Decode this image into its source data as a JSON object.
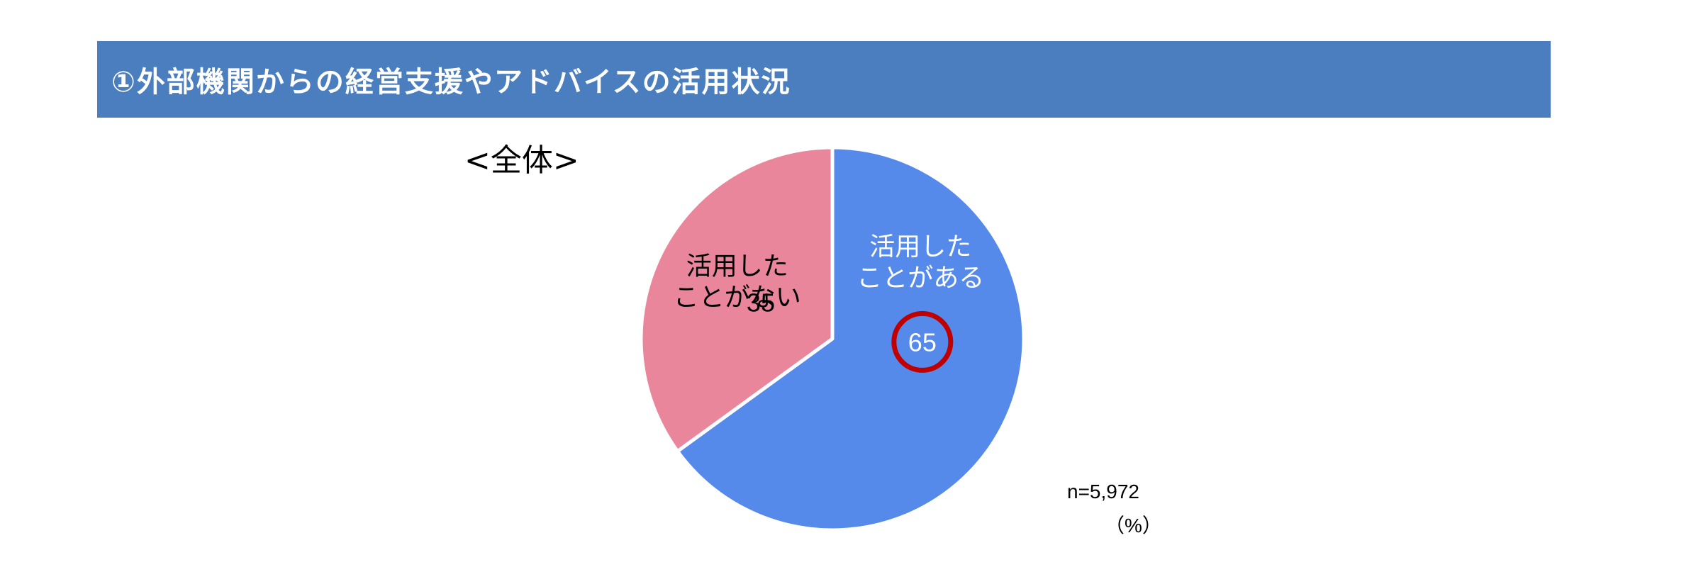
{
  "header": {
    "title": "①外部機関からの経営支援やアドバイスの活用状況",
    "bar_color": "#4a7ebf"
  },
  "scope_label": "<全体>",
  "chart_data": {
    "type": "pie",
    "title": "",
    "start_angle_deg": 0,
    "direction": "clockwise",
    "slices": [
      {
        "label_lines": [
          "活用した",
          "ことがある"
        ],
        "value": 65,
        "value_text": "65",
        "color": "#5589ea",
        "text_color": "#ffffff",
        "highlighted": true,
        "highlight_color": "#c00000"
      },
      {
        "label_lines": [
          "活用した",
          "ことがない"
        ],
        "value": 35,
        "value_text": "35",
        "color": "#e9869b",
        "text_color": "#000000",
        "highlighted": false
      }
    ],
    "sample_note": "n=5,972",
    "unit_note": "（%）"
  }
}
